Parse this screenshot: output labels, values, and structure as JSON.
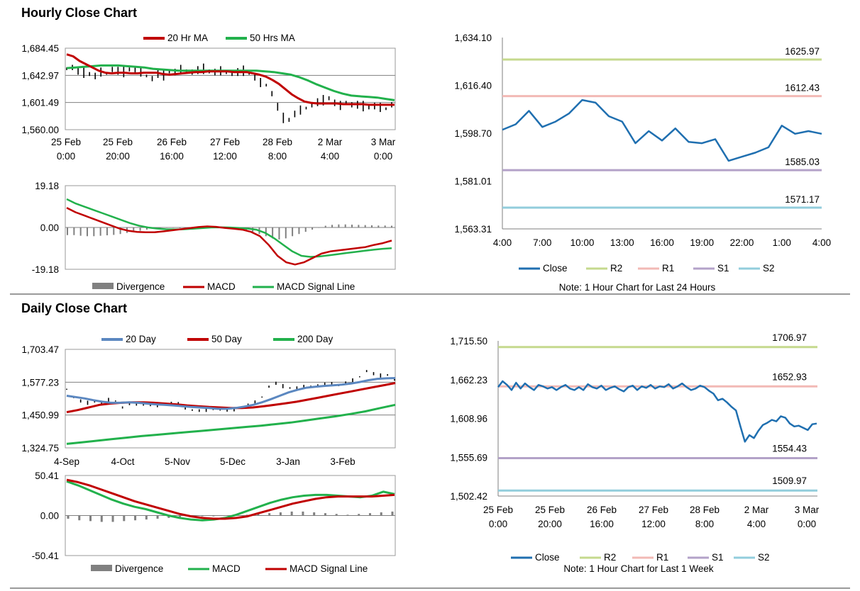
{
  "sections": {
    "hourly_title": "Hourly Close Chart",
    "daily_title": "Daily Close Chart"
  },
  "colors": {
    "ma20hr": "#c00000",
    "ma50hr": "#22b14c",
    "ma20d": "#5b87c0",
    "ma50d": "#c00000",
    "ma200d": "#22b14c",
    "close": "#1f6fb0",
    "r2": "#c5d98d",
    "r1": "#f2b9b5",
    "s1": "#b3a2c8",
    "s2": "#92cddc",
    "price": "#000000",
    "divergence": "#808080"
  },
  "chart_data": [
    {
      "id": "hourly_price",
      "type": "line",
      "title": "Hourly Close Chart",
      "ylim": [
        1560.0,
        1684.45
      ],
      "y_ticks": [
        "1,684.45",
        "1,642.97",
        "1,601.49",
        "1,560.00"
      ],
      "x_ticks": [
        [
          "25 Feb",
          "0:00"
        ],
        [
          "25 Feb",
          "20:00"
        ],
        [
          "26 Feb",
          "16:00"
        ],
        [
          "27 Feb",
          "12:00"
        ],
        [
          "28 Feb",
          "8:00"
        ],
        [
          "2 Mar",
          "4:00"
        ],
        [
          "3 Mar",
          "0:00"
        ]
      ],
      "legend": [
        "20 Hr MA",
        "50 Hrs MA"
      ],
      "series": [
        {
          "name": "Price",
          "values": [
            1653,
            1655,
            1650,
            1647,
            1645,
            1642,
            1648,
            1646,
            1652,
            1650,
            1648,
            1652,
            1650,
            1648,
            1642,
            1638,
            1645,
            1643,
            1649,
            1648,
            1652,
            1650,
            1648,
            1651,
            1653,
            1649,
            1648,
            1650,
            1647,
            1646,
            1648,
            1650,
            1647,
            1640,
            1632,
            1628,
            1615,
            1595,
            1578,
            1575,
            1584,
            1590,
            1593,
            1598,
            1602,
            1605,
            1608,
            1601,
            1597,
            1602,
            1598,
            1598,
            1596,
            1594,
            1596,
            1594,
            1592,
            1598
          ]
        },
        {
          "name": "20 Hr MA",
          "values": [
            1675,
            1672,
            1665,
            1660,
            1655,
            1650,
            1647,
            1646,
            1647,
            1647,
            1646,
            1646,
            1647,
            1647,
            1647,
            1645,
            1644,
            1645,
            1646,
            1647,
            1648,
            1648,
            1649,
            1649,
            1649,
            1649,
            1648,
            1648,
            1648,
            1646,
            1644,
            1641,
            1636,
            1630,
            1622,
            1614,
            1608,
            1603,
            1601,
            1600,
            1600,
            1600,
            1600,
            1599,
            1599,
            1599,
            1599,
            1598,
            1598,
            1598,
            1598,
            1598
          ]
        },
        {
          "name": "50 Hrs MA",
          "values": [
            1654,
            1655,
            1656,
            1657,
            1658,
            1658,
            1658,
            1657,
            1656,
            1655,
            1653,
            1652,
            1651,
            1650,
            1650,
            1650,
            1650,
            1650,
            1650,
            1650,
            1650,
            1650,
            1650,
            1649,
            1648,
            1646,
            1644,
            1640,
            1635,
            1629,
            1624,
            1619,
            1615,
            1612,
            1611,
            1610,
            1609,
            1607,
            1605
          ]
        }
      ]
    },
    {
      "id": "hourly_macd",
      "type": "line",
      "ylim": [
        -19.18,
        19.18
      ],
      "y_ticks": [
        "19.18",
        "0.00",
        "-19.18"
      ],
      "legend": [
        "Divergence",
        "MACD",
        "MACD Signal Line"
      ],
      "series": [
        {
          "name": "Divergence",
          "values": [
            -3.5,
            -3.5,
            -3.8,
            -4,
            -4,
            -3.8,
            -3.6,
            -3.4,
            -3,
            -2.5,
            -2,
            -1.5,
            -1,
            -0.6,
            -0.3,
            -0.2,
            -0.2,
            -0.3,
            -0.2,
            -0.1,
            0,
            0.1,
            0.2,
            0.1,
            0,
            -0.2,
            -0.6,
            -1.2,
            -2,
            -3,
            -4,
            -5,
            -5.5,
            -5,
            -4,
            -3,
            -2,
            -1,
            0,
            0.8,
            1.2,
            1.4,
            1.4,
            1.3,
            1.2,
            1.1,
            1,
            0.9,
            0.9,
            0.8
          ]
        },
        {
          "name": "MACD",
          "values": [
            9,
            7,
            5.5,
            4,
            2.5,
            1,
            -0.5,
            -1.5,
            -2,
            -2.2,
            -2.2,
            -1.8,
            -1.3,
            -0.8,
            -0.3,
            0.2,
            0.5,
            0.3,
            -0.2,
            -0.6,
            -1,
            -2,
            -4,
            -8,
            -13,
            -16,
            -17,
            -16,
            -14,
            -12,
            -11,
            -10.5,
            -10,
            -9.5,
            -9,
            -8,
            -7.2,
            -6
          ]
        },
        {
          "name": "MACD Signal Line",
          "values": [
            13,
            11,
            9.5,
            8,
            6.5,
            5,
            3.5,
            2,
            0.8,
            0,
            -0.5,
            -0.8,
            -0.9,
            -0.8,
            -0.6,
            -0.3,
            0,
            0.1,
            0,
            -0.2,
            -0.5,
            -1,
            -2.5,
            -5,
            -8,
            -11,
            -13,
            -13.5,
            -13.3,
            -12.8,
            -12.3,
            -11.7,
            -11.2,
            -10.7,
            -10.2,
            -9.8,
            -9.5
          ]
        }
      ]
    },
    {
      "id": "hourly_pivot",
      "type": "line",
      "ylim": [
        1563.31,
        1634.1
      ],
      "y_ticks": [
        "1,634.10",
        "1,616.40",
        "1,598.70",
        "1,581.01",
        "1,563.31"
      ],
      "x_ticks": [
        "4:00",
        "7:00",
        "10:00",
        "13:00",
        "16:00",
        "19:00",
        "22:00",
        "1:00",
        "4:00"
      ],
      "levels": [
        {
          "name": "R2",
          "value": 1625.97,
          "label": "1625.97"
        },
        {
          "name": "R1",
          "value": 1612.43,
          "label": "1612.43"
        },
        {
          "name": "S1",
          "value": 1585.03,
          "label": "1585.03"
        },
        {
          "name": "S2",
          "value": 1571.17,
          "label": "1571.17"
        }
      ],
      "series": [
        {
          "name": "Close",
          "values": [
            1600,
            1602,
            1607,
            1601,
            1603,
            1606,
            1611,
            1610,
            1605,
            1603,
            1595,
            1599.5,
            1596,
            1600.5,
            1595.5,
            1595,
            1596.5,
            1588.5,
            1590,
            1591.5,
            1593.5,
            1601.5,
            1598.5,
            1599.5,
            1598.5
          ]
        }
      ],
      "legend": [
        "Close",
        "R2",
        "R1",
        "S1",
        "S2"
      ],
      "note": "Note: 1 Hour Chart for Last 24 Hours"
    },
    {
      "id": "daily_price",
      "type": "line",
      "title": "Daily Close Chart",
      "ylim": [
        1324.75,
        1703.47
      ],
      "y_ticks": [
        "1,703.47",
        "1,577.23",
        "1,450.99",
        "1,324.75"
      ],
      "x_ticks": [
        "4-Sep",
        "4-Oct",
        "5-Nov",
        "5-Dec",
        "3-Jan",
        "3-Feb"
      ],
      "legend": [
        "20 Day",
        "50 Day",
        "200 Day"
      ],
      "series": [
        {
          "name": "Price",
          "values": [
            1550,
            1520,
            1505,
            1498,
            1502,
            1500,
            1510,
            1505,
            1480,
            1495,
            1495,
            1490,
            1490,
            1488,
            1493,
            1498,
            1495,
            1480,
            1470,
            1468,
            1470,
            1472,
            1472,
            1470,
            1473,
            1480,
            1490,
            1500,
            1520,
            1560,
            1573,
            1562,
            1555,
            1556,
            1560,
            1562,
            1565,
            1570,
            1570,
            1565,
            1575,
            1585,
            1598,
            1620,
            1610,
            1603,
            1605,
            1588
          ]
        },
        {
          "name": "20 Day",
          "values": [
            1525,
            1520,
            1515,
            1508,
            1502,
            1498,
            1498,
            1500,
            1498,
            1495,
            1492,
            1490,
            1488,
            1485,
            1482,
            1480,
            1478,
            1475,
            1475,
            1478,
            1483,
            1490,
            1500,
            1512,
            1525,
            1538,
            1548,
            1556,
            1560,
            1563,
            1565,
            1568,
            1572,
            1578,
            1585,
            1590,
            1592,
            1593
          ]
        },
        {
          "name": "50 Day",
          "values": [
            1462,
            1470,
            1480,
            1490,
            1495,
            1498,
            1500,
            1500,
            1498,
            1495,
            1492,
            1488,
            1485,
            1482,
            1480,
            1478,
            1478,
            1480,
            1485,
            1490,
            1496,
            1502,
            1510,
            1518,
            1526,
            1534,
            1542,
            1550,
            1558,
            1566,
            1574
          ]
        },
        {
          "name": "200 Day",
          "values": [
            1340,
            1346,
            1352,
            1358,
            1364,
            1370,
            1375,
            1380,
            1385,
            1390,
            1395,
            1400,
            1405,
            1410,
            1416,
            1422,
            1430,
            1438,
            1446,
            1455,
            1465,
            1478,
            1490
          ]
        }
      ]
    },
    {
      "id": "daily_macd",
      "type": "line",
      "ylim": [
        -50.41,
        50.41
      ],
      "y_ticks": [
        "50.41",
        "0.00",
        "-50.41"
      ],
      "legend": [
        "Divergence",
        "MACD",
        "MACD Signal Line"
      ],
      "series": [
        {
          "name": "Divergence",
          "values": [
            -4,
            -6,
            -7,
            -8,
            -8,
            -7,
            -6,
            -5,
            -4,
            -3,
            -2,
            -2,
            -1,
            -1,
            0,
            0,
            1,
            2,
            3,
            4,
            5,
            5,
            4,
            3,
            2,
            1,
            2,
            3,
            4,
            5
          ]
        },
        {
          "name": "MACD",
          "values": [
            43,
            38,
            32,
            26,
            20,
            15,
            11,
            8,
            4,
            0,
            -3,
            -5,
            -6,
            -5,
            -3,
            1,
            6,
            11,
            16,
            20,
            23,
            25,
            26,
            26,
            25,
            24,
            23,
            25,
            30,
            27
          ]
        },
        {
          "name": "MACD Signal Line",
          "values": [
            45,
            42,
            38,
            33,
            28,
            23,
            18,
            14,
            10,
            6,
            2,
            -1,
            -3,
            -4,
            -4,
            -3,
            -1,
            3,
            7,
            11,
            15,
            18,
            21,
            23,
            24,
            24,
            24,
            24,
            25,
            26
          ]
        }
      ]
    },
    {
      "id": "daily_pivot",
      "type": "line",
      "ylim": [
        1502.42,
        1715.5
      ],
      "y_ticks": [
        "1,715.50",
        "1,662.23",
        "1,608.96",
        "1,555.69",
        "1,502.42"
      ],
      "x_ticks": [
        [
          "25 Feb",
          "0:00"
        ],
        [
          "25 Feb",
          "20:00"
        ],
        [
          "26 Feb",
          "16:00"
        ],
        [
          "27 Feb",
          "12:00"
        ],
        [
          "28 Feb",
          "8:00"
        ],
        [
          "2 Mar",
          "4:00"
        ],
        [
          "3 Mar",
          "0:00"
        ]
      ],
      "levels": [
        {
          "name": "R2",
          "value": 1706.97,
          "label": "1706.97"
        },
        {
          "name": "R1",
          "value": 1652.93,
          "label": "1652.93"
        },
        {
          "name": "S1",
          "value": 1554.43,
          "label": "1554.43"
        },
        {
          "name": "S2",
          "value": 1509.97,
          "label": "1509.97"
        }
      ],
      "series": [
        {
          "name": "Close",
          "values": [
            1652,
            1660,
            1655,
            1648,
            1658,
            1650,
            1657,
            1652,
            1648,
            1655,
            1653,
            1650,
            1652,
            1648,
            1652,
            1655,
            1650,
            1648,
            1652,
            1648,
            1656,
            1652,
            1650,
            1654,
            1648,
            1651,
            1653,
            1649,
            1646,
            1652,
            1654,
            1648,
            1653,
            1651,
            1655,
            1650,
            1653,
            1652,
            1656,
            1650,
            1653,
            1657,
            1652,
            1648,
            1650,
            1654,
            1652,
            1647,
            1643,
            1634,
            1636,
            1631,
            1625,
            1620,
            1598,
            1577,
            1586,
            1582,
            1592,
            1600,
            1603,
            1607,
            1605,
            1612,
            1610,
            1602,
            1598,
            1599,
            1596,
            1593,
            1601,
            1602
          ]
        }
      ],
      "legend": [
        "Close",
        "R2",
        "R1",
        "S1",
        "S2"
      ],
      "note": "Note: 1 Hour Chart for Last 1 Week"
    }
  ]
}
